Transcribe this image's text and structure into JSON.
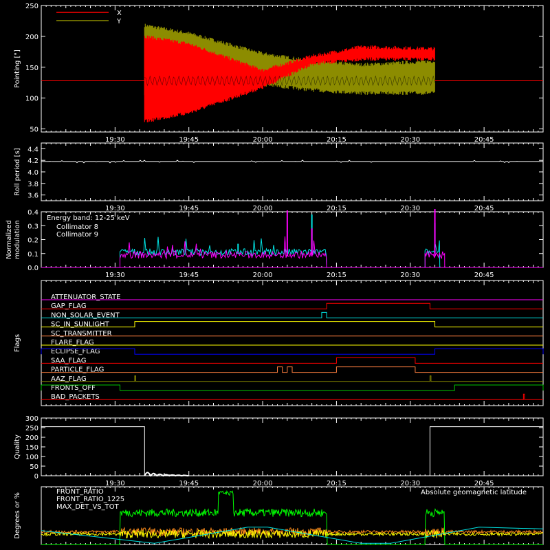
{
  "colors": {
    "background": "#000000",
    "axis": "#ffffff",
    "red": "#ff0000",
    "olive": "#8c8c00",
    "white": "#ffffff",
    "cyan": "#00e5e5",
    "magenta": "#ff00ff",
    "green": "#00ff00",
    "orange": "#ff8c1a",
    "yellow": "#ffff00",
    "blue": "#0000ff",
    "flag_orange": "#ff7f3f",
    "flag_red": "#ff0000",
    "flag_green": "#00c800"
  },
  "time_ticks": [
    "19:30",
    "19:45",
    "20:00",
    "20:15",
    "20:30",
    "20:45"
  ],
  "chart_data": [
    {
      "type": "line",
      "ylabel": "Pointing [\"]",
      "ylim": [
        45,
        250
      ],
      "yticks": [
        "50",
        "100",
        "150",
        "200",
        "250"
      ],
      "x_range": [
        "19:15",
        "20:57"
      ],
      "series": [
        {
          "name": "X",
          "color": "red",
          "envelope": [
            {
              "t": "19:15",
              "lo": 128,
              "hi": 128
            },
            {
              "t": "19:36",
              "lo": 62,
              "hi": 200
            },
            {
              "t": "19:45",
              "lo": 76,
              "hi": 188
            },
            {
              "t": "20:00",
              "lo": 117,
              "hi": 145
            },
            {
              "t": "20:10",
              "lo": 155,
              "hi": 168
            },
            {
              "t": "20:20",
              "lo": 163,
              "hi": 183
            },
            {
              "t": "20:35",
              "lo": 163,
              "hi": 180
            },
            {
              "t": "20:57",
              "lo": 128,
              "hi": 128
            }
          ]
        },
        {
          "name": "Y",
          "color": "olive",
          "envelope": [
            {
              "t": "19:15",
              "lo": 128,
              "hi": 128
            },
            {
              "t": "19:36",
              "lo": 102,
              "hi": 218
            },
            {
              "t": "19:45",
              "lo": 118,
              "hi": 205
            },
            {
              "t": "20:00",
              "lo": 122,
              "hi": 172
            },
            {
              "t": "20:10",
              "lo": 113,
              "hi": 160
            },
            {
              "t": "20:20",
              "lo": 108,
              "hi": 154
            },
            {
              "t": "20:35",
              "lo": 108,
              "hi": 160
            },
            {
              "t": "20:57",
              "lo": 128,
              "hi": 128
            }
          ]
        }
      ]
    },
    {
      "type": "line",
      "ylabel": "Roll period [s]",
      "ylim": [
        3.5,
        4.5
      ],
      "yticks": [
        "3.6",
        "3.8",
        "4.0",
        "4.2",
        "4.4"
      ],
      "series": [
        {
          "name": "",
          "color": "white",
          "value": 4.18
        }
      ]
    },
    {
      "type": "line",
      "ylabel": "Normalized modulation",
      "ylim": [
        0,
        0.4
      ],
      "yticks": [
        "0.0",
        "0.1",
        "0.2",
        "0.3",
        "0.4"
      ],
      "annotation": "Energy band: 12-25 keV",
      "series": [
        {
          "name": "Collimator 8",
          "color": "cyan",
          "segments": [
            [
              "19:31",
              "20:13"
            ],
            [
              "20:33",
              "20:36"
            ]
          ],
          "base": 0.1,
          "spikes": [
            {
              "t": "20:10",
              "v": 0.38
            },
            {
              "t": "20:35",
              "v": 0.32
            },
            {
              "t": "19:55",
              "v": 0.17
            }
          ]
        },
        {
          "name": "Collimator 9",
          "color": "magenta",
          "segments": [
            [
              "19:31",
              "20:13"
            ],
            [
              "20:33",
              "20:37"
            ]
          ],
          "base": 0.08,
          "spikes": [
            {
              "t": "20:05",
              "v": 0.41
            },
            {
              "t": "20:35",
              "v": 0.42
            },
            {
              "t": "20:10",
              "v": 0.28
            }
          ]
        }
      ]
    },
    {
      "type": "line",
      "ylabel": "Flags",
      "flags": [
        {
          "name": "ATTENUATOR_STATE",
          "color": "magenta",
          "on": []
        },
        {
          "name": "GAP_FLAG",
          "color": "flag_red",
          "on": [
            [
              "20:13",
              "20:34"
            ]
          ]
        },
        {
          "name": "NON_SOLAR_EVENT",
          "color": "cyan",
          "on": [
            [
              "20:12",
              "20:13"
            ]
          ]
        },
        {
          "name": "SC_IN_SUNLIGHT",
          "color": "yellow",
          "on": [
            [
              "19:34",
              "20:35"
            ]
          ]
        },
        {
          "name": "SC_TRANSMITTER",
          "color": "flag_orange",
          "on": []
        },
        {
          "name": "FLARE_FLAG",
          "color": "yellow",
          "on": []
        },
        {
          "name": "ECLIPSE_FLAG",
          "color": "blue",
          "on": [
            [
              "19:15",
              "19:34"
            ],
            [
              "20:35",
              "20:57"
            ]
          ]
        },
        {
          "name": "SAA_FLAG",
          "color": "flag_red",
          "on": [
            [
              "20:15",
              "20:31"
            ]
          ]
        },
        {
          "name": "PARTICLE_FLAG",
          "color": "flag_orange",
          "on": [
            [
              "20:03",
              "20:04"
            ],
            [
              "20:05",
              "20:06"
            ],
            [
              "20:15",
              "20:31"
            ]
          ]
        },
        {
          "name": "AAZ_FLAG",
          "color": "olive",
          "on": [
            [
              "19:34",
              "19:34"
            ],
            [
              "20:34",
              "20:34"
            ]
          ]
        },
        {
          "name": "FRONTS_OFF",
          "color": "flag_green",
          "on": [
            [
              "19:15",
              "19:31"
            ],
            [
              "20:39",
              "20:57"
            ]
          ]
        },
        {
          "name": "BAD_PACKETS",
          "color": "flag_red",
          "on": [
            [
              "20:53",
              "20:53"
            ]
          ]
        }
      ]
    },
    {
      "type": "line",
      "ylabel": "Quality",
      "ylim": [
        0,
        300
      ],
      "yticks": [
        "0",
        "50",
        "100",
        "150",
        "200",
        "250",
        "300"
      ],
      "series": [
        {
          "name": "",
          "color": "white",
          "points": [
            [
              "19:15",
              255
            ],
            [
              "19:36",
              255
            ],
            [
              "19:36",
              0
            ],
            [
              "20:34",
              0
            ],
            [
              "20:34",
              255
            ],
            [
              "20:57",
              255
            ]
          ]
        }
      ]
    },
    {
      "type": "line",
      "ylabel": "Degrees or %",
      "ylim": [
        0,
        100
      ],
      "annotation": "Absolute geomagnetic latitude",
      "series": [
        {
          "name": "FRONT_RATIO",
          "color": "yellow",
          "base": 18
        },
        {
          "name": "FRONT_RATIO_1225",
          "color": "green",
          "base": 55
        },
        {
          "name": "MAX_DET_VS_TOT",
          "color": "orange",
          "base": 22
        },
        {
          "name": "Absolute geomagnetic latitude",
          "color": "cyan",
          "points": [
            [
              "19:15",
              24
            ],
            [
              "19:38",
              2
            ],
            [
              "19:57",
              30
            ],
            [
              "20:01",
              30
            ],
            [
              "20:20",
              2
            ],
            [
              "20:26",
              2
            ],
            [
              "20:44",
              30
            ],
            [
              "20:57",
              27
            ]
          ]
        }
      ]
    }
  ]
}
